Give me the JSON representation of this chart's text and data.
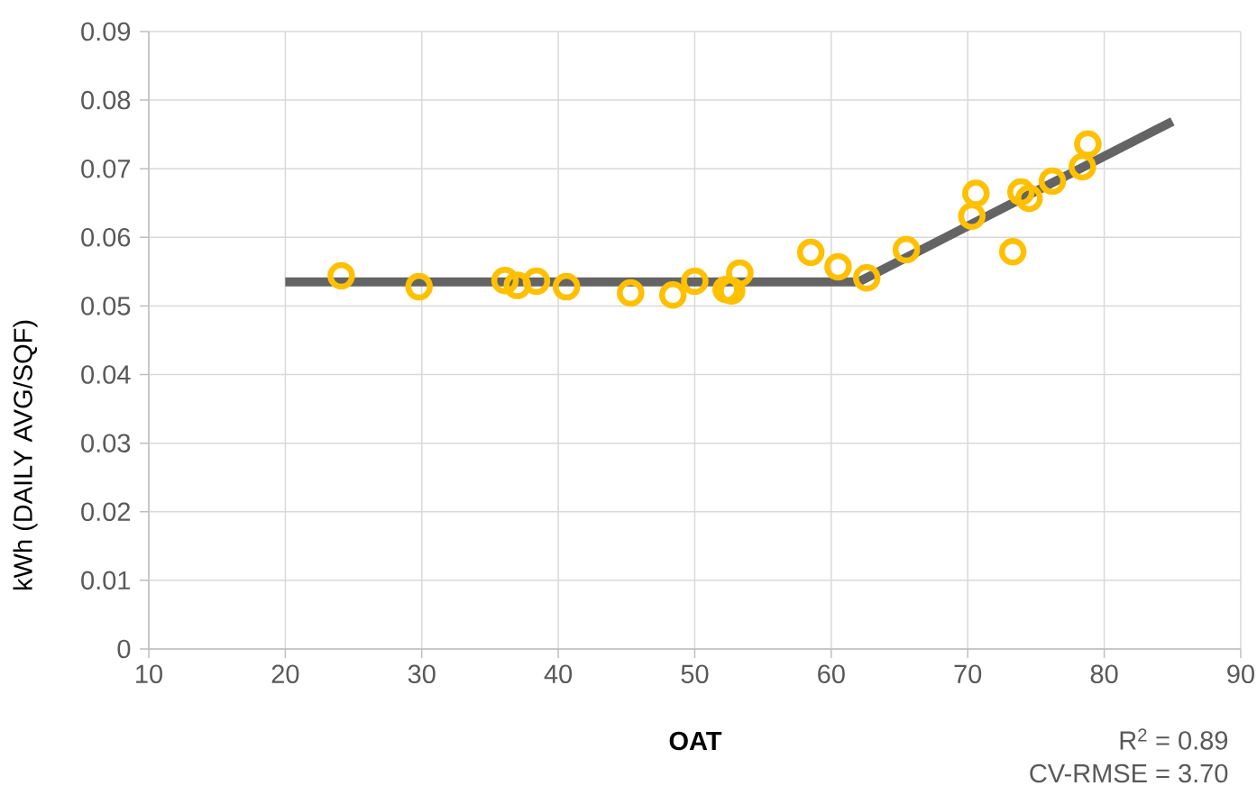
{
  "chart_data": {
    "type": "scatter",
    "xlabel": "OAT",
    "ylabel": "kWh (DAILY AVG/SQF)",
    "xlim": [
      10,
      90
    ],
    "xticks": [
      10,
      20,
      30,
      40,
      50,
      60,
      70,
      80,
      90
    ],
    "ylim": [
      0,
      0.09
    ],
    "yticks": [
      0,
      0.01,
      0.02,
      0.03,
      0.04,
      0.05,
      0.06,
      0.07,
      0.08,
      0.09
    ],
    "grid": true,
    "series": [
      {
        "type": "line",
        "color": "#646464",
        "marker": "none",
        "x": [
          20,
          62,
          85
        ],
        "values": [
          0.0535,
          0.0535,
          0.0769
        ]
      },
      {
        "color": "#FFC000",
        "marker": "circle",
        "x": [
          24.1,
          29.8,
          36.1,
          37.0,
          38.4,
          40.6,
          45.3,
          48.4,
          50.0,
          52.3,
          52.7,
          53.3,
          58.5,
          60.5,
          62.6,
          65.5,
          70.3,
          70.6,
          73.3,
          73.9,
          74.5,
          76.2,
          78.4,
          78.8
        ],
        "values": [
          0.0544,
          0.0528,
          0.0537,
          0.053,
          0.0536,
          0.0528,
          0.0519,
          0.0516,
          0.0536,
          0.0524,
          0.0522,
          0.0548,
          0.0578,
          0.0557,
          0.0541,
          0.0582,
          0.0631,
          0.0664,
          0.0579,
          0.0666,
          0.0657,
          0.0682,
          0.0703,
          0.0736
        ]
      }
    ],
    "annotations": [
      "R$^{2}$ =   0.89",
      "CV-RMSE =   3.70"
    ]
  }
}
